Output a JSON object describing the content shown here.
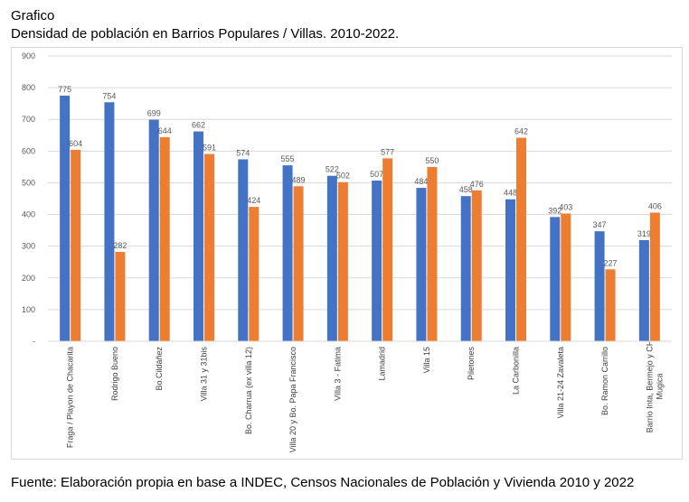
{
  "header": {
    "label": "Grafico",
    "title": "Densidad de población en Barrios Populares / Villas. 2010-2022."
  },
  "source": "Fuente: Elaboración propia en base a INDEC, Censos Nacionales de Población y Vivienda 2010 y 2022",
  "colors": {
    "series_2010": "#4472C4",
    "series_2022": "#ED7D31",
    "grid": "#d9d9d9",
    "text": "#595959"
  },
  "chart_data": {
    "type": "bar",
    "title": "Densidad de población en Barrios Populares / Villas. 2010-2022.",
    "ylim": [
      0,
      900
    ],
    "yticks": [
      "-",
      "100",
      "200",
      "300",
      "400",
      "500",
      "600",
      "700",
      "800",
      "900"
    ],
    "grid": true,
    "legend": "none",
    "categories": [
      [
        "Fraga / Playon de Chacarita"
      ],
      [
        "Rodrigo Bueno"
      ],
      [
        "Bo.Cildáñez"
      ],
      [
        "Villa 31 y 31bis"
      ],
      [
        "Bo. Charrua (ex villa 12)"
      ],
      [
        "Villa 20 y Bo. Papa Francisco"
      ],
      [
        "Villa 3 - Fatima"
      ],
      [
        "Lamadrid"
      ],
      [
        "Villa 15"
      ],
      [
        "Piletones"
      ],
      [
        "La Carbonilla"
      ],
      [
        "Villa 21-24 Zavaleta"
      ],
      [
        "Bo. Ramon Carrillo"
      ],
      [
        "Barrio Inta, Bermejo y CH",
        "Mugica"
      ]
    ],
    "series": [
      {
        "values": [
          775,
          754,
          699,
          662,
          574,
          555,
          522,
          507,
          484,
          458,
          448,
          392,
          347,
          319
        ]
      },
      {
        "values": [
          604,
          282,
          644,
          591,
          424,
          489,
          502,
          577,
          550,
          476,
          642,
          403,
          227,
          406
        ]
      }
    ]
  }
}
